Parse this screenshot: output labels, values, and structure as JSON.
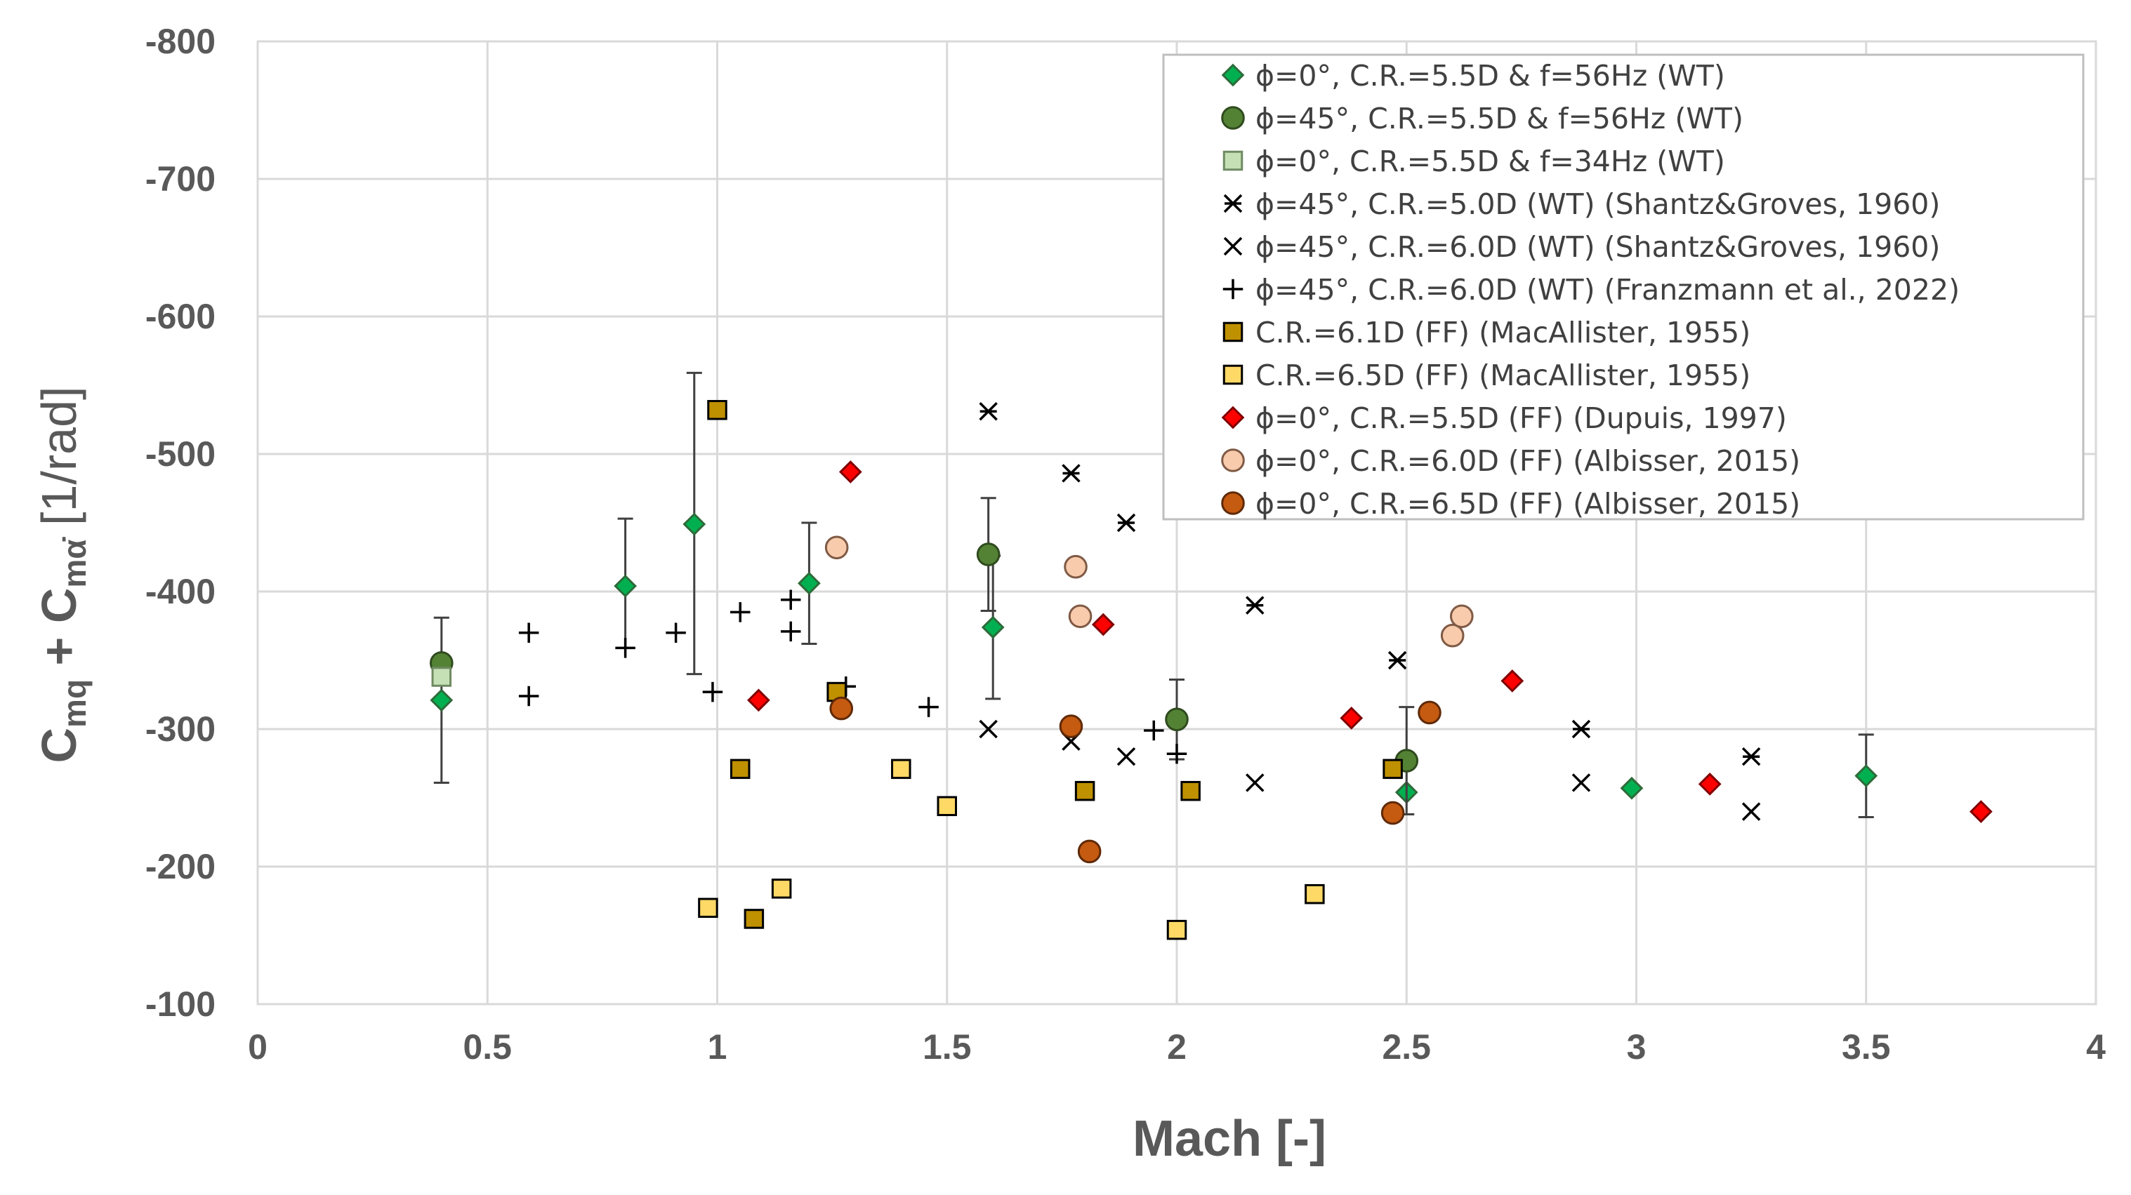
{
  "chart_data": {
    "type": "scatter",
    "xlabel": "Mach [-]",
    "ylabel": {
      "c1": "C",
      "s1": "mq",
      "plus": " + ",
      "c2": "C",
      "s2": "mα̇",
      "units": " [1/rad]"
    },
    "xlim": [
      0,
      4
    ],
    "ylim": [
      -800,
      -100
    ],
    "y_reversed": true,
    "grid": true,
    "legend_position": "top-right",
    "x_ticks": [
      0,
      0.5,
      1,
      1.5,
      2,
      2.5,
      3,
      3.5,
      4
    ],
    "x_tick_labels": [
      "0",
      "0.5",
      "1",
      "1.5",
      "2",
      "2.5",
      "3",
      "3.5",
      "4"
    ],
    "y_ticks": [
      -800,
      -700,
      -600,
      -500,
      -400,
      -300,
      -200,
      -100
    ],
    "y_tick_labels": [
      "-800",
      "-700",
      "-600",
      "-500",
      "-400",
      "-300",
      "-200",
      "-100"
    ],
    "series": [
      {
        "name": "ϕ=0°, C.R.=5.5D & f=56Hz (WT)",
        "marker": "diamond",
        "fill": "#00B050",
        "stroke": "#2e6b3a",
        "points": [
          {
            "x": 0.4,
            "y": -321,
            "err_lo": -261,
            "err_hi": -381
          },
          {
            "x": 0.8,
            "y": -404,
            "err_lo": -359,
            "err_hi": -453
          },
          {
            "x": 0.95,
            "y": -449,
            "err_lo": -340,
            "err_hi": -559
          },
          {
            "x": 1.2,
            "y": -406,
            "err_lo": -362,
            "err_hi": -450
          },
          {
            "x": 1.6,
            "y": -374,
            "err_lo": -322,
            "err_hi": -426
          },
          {
            "x": 2.5,
            "y": -254
          },
          {
            "x": 2.99,
            "y": -257
          },
          {
            "x": 3.5,
            "y": -266,
            "err_lo": -236,
            "err_hi": -296
          }
        ]
      },
      {
        "name": "ϕ=45°, C.R.=5.5D & f=56Hz (WT)",
        "marker": "circle",
        "fill": "#548235",
        "stroke": "#2f4b1e",
        "points": [
          {
            "x": 0.4,
            "y": -348
          },
          {
            "x": 1.59,
            "y": -427,
            "err_lo": -386,
            "err_hi": -468
          },
          {
            "x": 2.0,
            "y": -307,
            "err_lo": -278,
            "err_hi": -336
          },
          {
            "x": 2.5,
            "y": -277,
            "err_lo": -238,
            "err_hi": -316
          }
        ]
      },
      {
        "name": "ϕ=0°, C.R.=5.5D & f=34Hz (WT)",
        "marker": "square",
        "fill": "#C5E0B4",
        "stroke": "#6f8a62",
        "points": [
          {
            "x": 0.4,
            "y": -338
          }
        ]
      },
      {
        "name": "ϕ=45°, C.R.=5.0D (WT) (Shantz&Groves, 1960)",
        "marker": "asterisk",
        "fill": "none",
        "stroke": "#000000",
        "points": [
          {
            "x": 1.59,
            "y": -531
          },
          {
            "x": 1.77,
            "y": -486
          },
          {
            "x": 1.89,
            "y": -450
          },
          {
            "x": 2.17,
            "y": -390
          },
          {
            "x": 2.48,
            "y": -350
          },
          {
            "x": 2.88,
            "y": -300
          },
          {
            "x": 3.25,
            "y": -280
          }
        ]
      },
      {
        "name": "ϕ=45°, C.R.=6.0D (WT) (Shantz&Groves, 1960)",
        "marker": "x",
        "fill": "none",
        "stroke": "#000000",
        "points": [
          {
            "x": 1.59,
            "y": -300
          },
          {
            "x": 1.77,
            "y": -291
          },
          {
            "x": 1.89,
            "y": -280
          },
          {
            "x": 2.17,
            "y": -261
          },
          {
            "x": 2.88,
            "y": -261
          },
          {
            "x": 3.25,
            "y": -240
          }
        ]
      },
      {
        "name": "ϕ=45°, C.R.=6.0D  (WT) (Franzmann et al., 2022)",
        "marker": "plus",
        "fill": "none",
        "stroke": "#000000",
        "points": [
          {
            "x": 0.59,
            "y": -370
          },
          {
            "x": 0.59,
            "y": -324
          },
          {
            "x": 0.8,
            "y": -359
          },
          {
            "x": 0.91,
            "y": -370
          },
          {
            "x": 0.99,
            "y": -327
          },
          {
            "x": 1.05,
            "y": -385
          },
          {
            "x": 1.16,
            "y": -394
          },
          {
            "x": 1.16,
            "y": -371
          },
          {
            "x": 1.28,
            "y": -331
          },
          {
            "x": 1.46,
            "y": -316
          },
          {
            "x": 1.95,
            "y": -299
          },
          {
            "x": 2.0,
            "y": -282
          }
        ]
      },
      {
        "name": "C.R.=6.1D (FF) (MacAllister, 1955)",
        "marker": "square",
        "fill": "#BF9000",
        "stroke": "#000000",
        "points": [
          {
            "x": 1.0,
            "y": -532
          },
          {
            "x": 1.05,
            "y": -271
          },
          {
            "x": 1.08,
            "y": -162
          },
          {
            "x": 1.26,
            "y": -327
          },
          {
            "x": 1.8,
            "y": -255
          },
          {
            "x": 2.03,
            "y": -255
          },
          {
            "x": 2.47,
            "y": -271
          }
        ]
      },
      {
        "name": "C.R.=6.5D (FF) (MacAllister, 1955)",
        "marker": "square",
        "fill": "#FFD966",
        "stroke": "#000000",
        "points": [
          {
            "x": 0.98,
            "y": -170
          },
          {
            "x": 1.14,
            "y": -184
          },
          {
            "x": 1.4,
            "y": -271
          },
          {
            "x": 1.5,
            "y": -244
          },
          {
            "x": 2.0,
            "y": -154
          },
          {
            "x": 2.3,
            "y": -180
          }
        ]
      },
      {
        "name": "ϕ=0°, C.R.=5.5D (FF) (Dupuis, 1997)",
        "marker": "diamond",
        "fill": "#FF0000",
        "stroke": "#800000",
        "points": [
          {
            "x": 1.09,
            "y": -321
          },
          {
            "x": 1.29,
            "y": -487
          },
          {
            "x": 1.84,
            "y": -376
          },
          {
            "x": 2.38,
            "y": -308
          },
          {
            "x": 2.73,
            "y": -335
          },
          {
            "x": 3.16,
            "y": -260
          },
          {
            "x": 3.75,
            "y": -240
          }
        ]
      },
      {
        "name": "ϕ=0°, C.R.=6.0D (FF) (Albisser, 2015)",
        "marker": "circle",
        "fill": "#F8CBAD",
        "stroke": "#7f5a45",
        "points": [
          {
            "x": 1.26,
            "y": -432
          },
          {
            "x": 1.78,
            "y": -418
          },
          {
            "x": 1.79,
            "y": -382
          },
          {
            "x": 2.6,
            "y": -368
          },
          {
            "x": 2.62,
            "y": -382
          }
        ]
      },
      {
        "name": "ϕ=0°, C.R.=6.5D (FF) (Albisser, 2015)",
        "marker": "circle",
        "fill": "#C55A11",
        "stroke": "#5f2a07",
        "points": [
          {
            "x": 1.27,
            "y": -315
          },
          {
            "x": 1.77,
            "y": -302
          },
          {
            "x": 1.81,
            "y": -211
          },
          {
            "x": 2.47,
            "y": -239
          },
          {
            "x": 2.55,
            "y": -312
          }
        ]
      }
    ]
  }
}
